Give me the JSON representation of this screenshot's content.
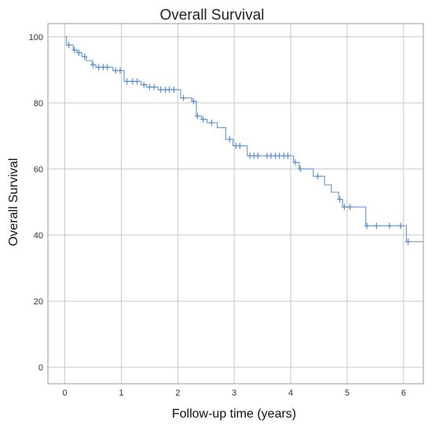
{
  "chart_data": {
    "type": "line",
    "subtype": "kaplan-meier",
    "title": "Overall Survival",
    "xlabel": "Follow-up time (years)",
    "ylabel": "Overall Survival",
    "xlim": [
      -0.3,
      6.35
    ],
    "ylim": [
      -5,
      104
    ],
    "xticks": [
      0,
      1,
      2,
      3,
      4,
      5,
      6
    ],
    "yticks": [
      0,
      20,
      40,
      60,
      80,
      100
    ],
    "grid": true,
    "series": [
      {
        "color": "#6a9fd8",
        "step_points": [
          [
            0.0,
            100
          ],
          [
            0.03,
            97.5
          ],
          [
            0.15,
            96.0
          ],
          [
            0.22,
            95.2
          ],
          [
            0.3,
            94.0
          ],
          [
            0.38,
            92.8
          ],
          [
            0.48,
            91.5
          ],
          [
            0.55,
            90.8
          ],
          [
            0.85,
            89.8
          ],
          [
            1.05,
            86.5
          ],
          [
            1.35,
            85.5
          ],
          [
            1.45,
            84.8
          ],
          [
            1.65,
            84.0
          ],
          [
            2.05,
            81.5
          ],
          [
            2.25,
            80.5
          ],
          [
            2.33,
            76.0
          ],
          [
            2.42,
            75.0
          ],
          [
            2.52,
            74.0
          ],
          [
            2.7,
            72.5
          ],
          [
            2.85,
            69.0
          ],
          [
            2.98,
            67.0
          ],
          [
            3.23,
            64.0
          ],
          [
            4.05,
            62.0
          ],
          [
            4.15,
            60.0
          ],
          [
            4.4,
            57.8
          ],
          [
            4.6,
            55.2
          ],
          [
            4.72,
            53.0
          ],
          [
            4.85,
            50.8
          ],
          [
            4.92,
            48.5
          ],
          [
            5.33,
            42.8
          ],
          [
            6.05,
            38.0
          ],
          [
            6.35,
            38.0
          ]
        ],
        "censored": [
          [
            0.07,
            97.5
          ],
          [
            0.17,
            96.0
          ],
          [
            0.25,
            95.2
          ],
          [
            0.35,
            94.0
          ],
          [
            0.5,
            91.5
          ],
          [
            0.6,
            90.8
          ],
          [
            0.68,
            90.8
          ],
          [
            0.75,
            90.8
          ],
          [
            0.9,
            89.8
          ],
          [
            0.98,
            89.8
          ],
          [
            1.1,
            86.5
          ],
          [
            1.2,
            86.5
          ],
          [
            1.28,
            86.5
          ],
          [
            1.4,
            85.5
          ],
          [
            1.5,
            84.8
          ],
          [
            1.58,
            84.8
          ],
          [
            1.7,
            84.0
          ],
          [
            1.78,
            84.0
          ],
          [
            1.85,
            84.0
          ],
          [
            1.93,
            84.0
          ],
          [
            2.1,
            81.5
          ],
          [
            2.28,
            80.5
          ],
          [
            2.35,
            76.0
          ],
          [
            2.45,
            75.0
          ],
          [
            2.6,
            74.0
          ],
          [
            2.92,
            69.0
          ],
          [
            3.03,
            67.0
          ],
          [
            3.1,
            67.0
          ],
          [
            3.28,
            64.0
          ],
          [
            3.35,
            64.0
          ],
          [
            3.42,
            64.0
          ],
          [
            3.58,
            64.0
          ],
          [
            3.65,
            64.0
          ],
          [
            3.73,
            64.0
          ],
          [
            3.8,
            64.0
          ],
          [
            3.88,
            64.0
          ],
          [
            3.95,
            64.0
          ],
          [
            4.08,
            62.0
          ],
          [
            4.17,
            60.0
          ],
          [
            4.48,
            57.8
          ],
          [
            4.87,
            50.8
          ],
          [
            4.95,
            48.5
          ],
          [
            5.05,
            48.5
          ],
          [
            5.35,
            42.8
          ],
          [
            5.52,
            42.8
          ],
          [
            5.75,
            42.8
          ],
          [
            5.95,
            42.8
          ],
          [
            6.08,
            38.0
          ]
        ]
      }
    ]
  }
}
